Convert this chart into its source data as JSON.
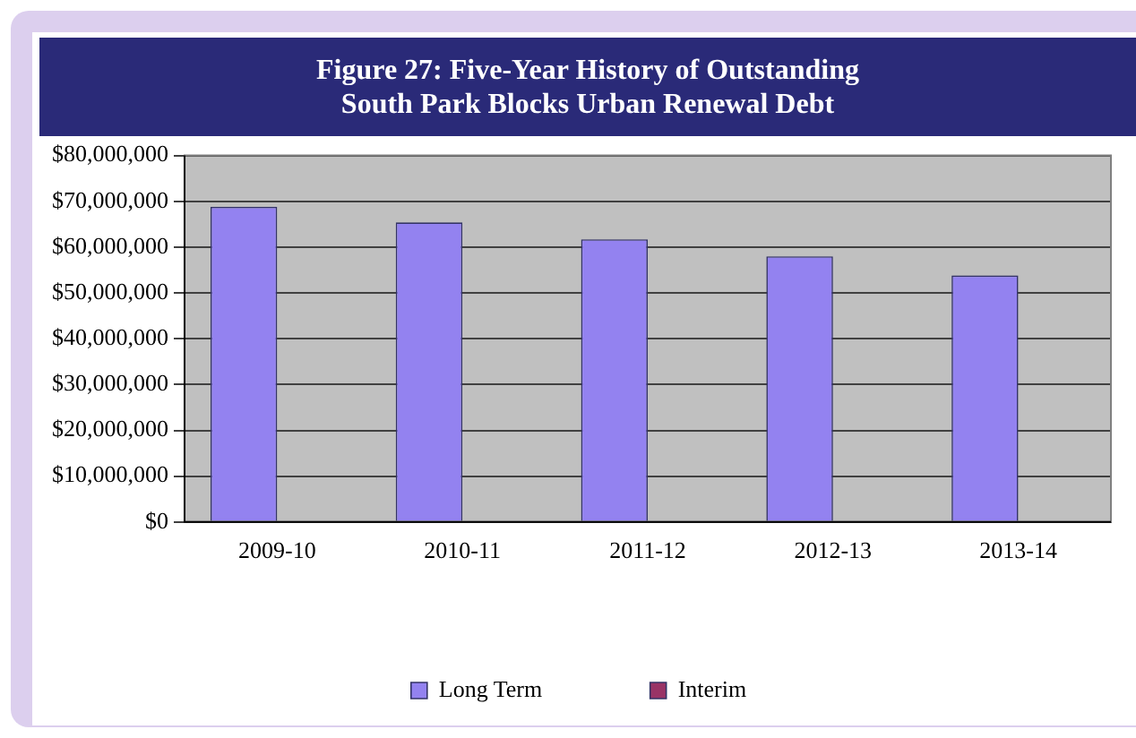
{
  "chart_data": {
    "type": "bar",
    "title": "Figure 27: Five-Year History of Outstanding\nSouth Park Blocks Urban Renewal Debt",
    "categories": [
      "2009-10",
      "2010-11",
      "2011-12",
      "2012-13",
      "2013-14"
    ],
    "series": [
      {
        "name": "Long Term",
        "color": "#9382f0",
        "values": [
          68800000,
          65400000,
          61700000,
          58000000,
          53800000
        ]
      },
      {
        "name": "Interim",
        "color": "#993366",
        "values": [
          0,
          0,
          0,
          0,
          0
        ]
      }
    ],
    "ylim": [
      0,
      80000000
    ],
    "yticks": [
      {
        "value": 0,
        "label": "$0"
      },
      {
        "value": 10000000,
        "label": "$10,000,000"
      },
      {
        "value": 20000000,
        "label": "$20,000,000"
      },
      {
        "value": 30000000,
        "label": "$30,000,000"
      },
      {
        "value": 40000000,
        "label": "$40,000,000"
      },
      {
        "value": 50000000,
        "label": "$50,000,000"
      },
      {
        "value": 60000000,
        "label": "$60,000,000"
      },
      {
        "value": 70000000,
        "label": "$70,000,000"
      },
      {
        "value": 80000000,
        "label": "$80,000,000"
      }
    ],
    "grid": "y",
    "legend": "bottom"
  }
}
